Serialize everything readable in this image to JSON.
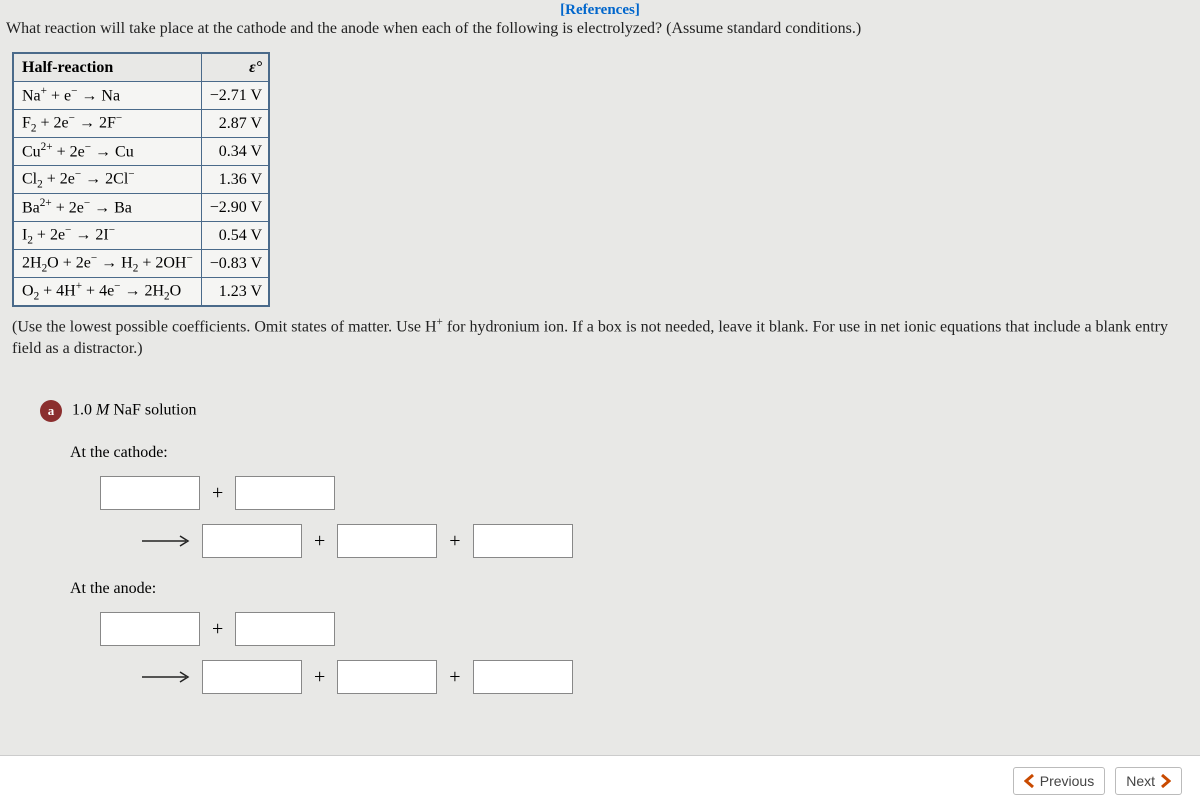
{
  "references_label": "[References]",
  "question_text": "What reaction will take place at the cathode and the anode when each of the following is electrolyzed? (Assume standard conditions.)",
  "table": {
    "headers": [
      "Half-reaction",
      "ε°"
    ],
    "rows": [
      {
        "reaction_html": "Na<sup>+</sup> + e<sup>−</sup> → Na",
        "potential": "−2.71 V"
      },
      {
        "reaction_html": "F<sub>2</sub> + 2e<sup>−</sup> → 2F<sup>−</sup>",
        "potential": "2.87 V"
      },
      {
        "reaction_html": "Cu<sup>2+</sup> + 2e<sup>−</sup> → Cu",
        "potential": "0.34 V"
      },
      {
        "reaction_html": "Cl<sub>2</sub> + 2e<sup>−</sup> → 2Cl<sup>−</sup>",
        "potential": "1.36 V"
      },
      {
        "reaction_html": "Ba<sup>2+</sup> + 2e<sup>−</sup> → Ba",
        "potential": "−2.90 V"
      },
      {
        "reaction_html": "I<sub>2</sub> + 2e<sup>−</sup> → 2I<sup>−</sup>",
        "potential": "0.54 V"
      },
      {
        "reaction_html": "2H<sub>2</sub>O + 2e<sup>−</sup> → H<sub>2</sub> + 2OH<sup>−</sup>",
        "potential": "−0.83 V"
      },
      {
        "reaction_html": "O<sub>2</sub> + 4H<sup>+</sup> + 4e<sup>−</sup> → 2H<sub>2</sub>O",
        "potential": "1.23 V"
      }
    ]
  },
  "instructions_html": "(Use the lowest possible coefficients. Omit states of matter. Use H<sup>+</sup> for hydronium ion. If a box is not needed, leave it blank. For use in net ionic equations that include a blank entry field as a distractor.)",
  "part": {
    "label": "a",
    "title_html": "1.0 <i>M</i> NaF solution",
    "cathode_label": "At the cathode:",
    "anode_label": "At the anode:"
  },
  "plus_sign": "+",
  "nav": {
    "prev": "Previous",
    "next": "Next"
  },
  "colors": {
    "background": "#e8e8e6",
    "table_border": "#4a6a8a",
    "link": "#0066cc",
    "part_badge": "#8b2e2e",
    "chevron": "#c94a00",
    "box_border": "#888888"
  }
}
